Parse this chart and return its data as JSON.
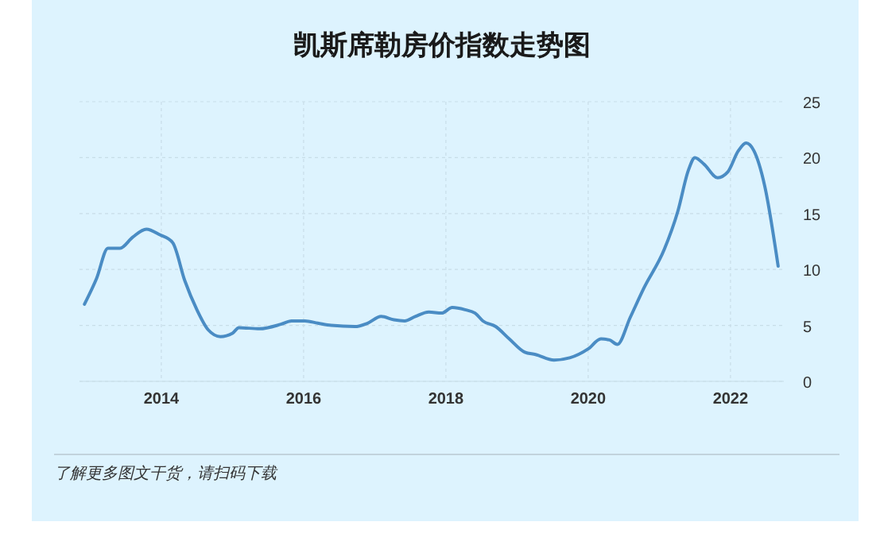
{
  "chart_data": {
    "type": "line",
    "title": "凯斯席勒房价指数走势图",
    "x": [
      2012.92,
      2013.09,
      2013.25,
      2013.42,
      2013.6,
      2013.79,
      2013.98,
      2014.16,
      2014.33,
      2014.5,
      2014.66,
      2014.83,
      2015.0,
      2015.09,
      2015.38,
      2015.68,
      2015.83,
      2016.02,
      2016.2,
      2016.39,
      2016.72,
      2016.9,
      2017.09,
      2017.27,
      2017.42,
      2017.57,
      2017.76,
      2017.94,
      2018.09,
      2018.27,
      2018.41,
      2018.52,
      2018.7,
      2018.89,
      2019.11,
      2019.26,
      2019.52,
      2019.74,
      2020.0,
      2020.18,
      2020.3,
      2020.41,
      2020.59,
      2020.78,
      2021.07,
      2021.26,
      2021.41,
      2021.5,
      2021.63,
      2021.82,
      2021.96,
      2022.11,
      2022.22,
      2022.33,
      2022.48,
      2022.67
    ],
    "series": [
      {
        "color": "#4a8cc4",
        "values": [
          6.9,
          9.2,
          11.9,
          11.9,
          12.9,
          13.6,
          13.1,
          12.4,
          9.0,
          6.4,
          4.6,
          4.0,
          4.3,
          4.8,
          4.7,
          5.1,
          5.4,
          5.4,
          5.2,
          5.0,
          4.9,
          5.2,
          5.8,
          5.5,
          5.4,
          5.8,
          6.2,
          6.1,
          6.6,
          6.4,
          6.1,
          5.4,
          4.9,
          3.8,
          2.6,
          2.4,
          1.9,
          2.1,
          2.9,
          3.8,
          3.7,
          3.3,
          5.7,
          8.3,
          11.8,
          15.2,
          18.9,
          20.0,
          19.4,
          18.2,
          18.7,
          20.6,
          21.3,
          20.6,
          17.5,
          10.3
        ]
      }
    ],
    "xlim": [
      2012.85,
      2022.75
    ],
    "xticks": [
      2014,
      2016,
      2018,
      2020,
      2022
    ],
    "ylim": [
      0,
      25
    ],
    "yticks": [
      0,
      5,
      10,
      15,
      20,
      25
    ],
    "grid": true,
    "annotations": [
      "了解更多图文干货，请扫码下载"
    ]
  }
}
